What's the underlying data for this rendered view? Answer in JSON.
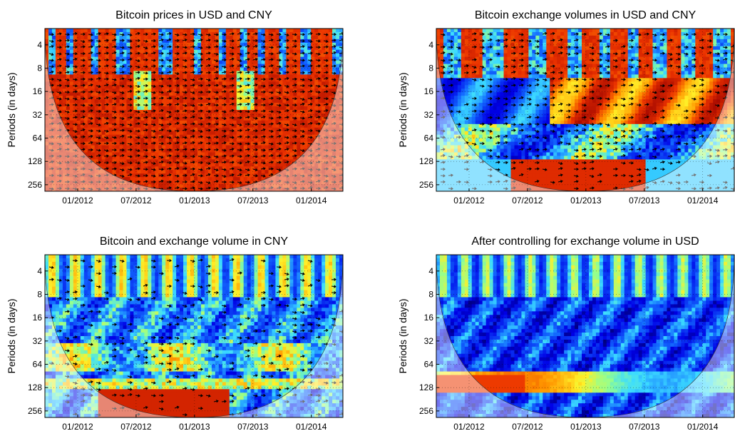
{
  "chart_data": [
    {
      "type": "heatmap",
      "title": "Bitcoin prices in USD and CNY",
      "ylabel": "Periods (in days)",
      "xlabel": "",
      "yscale": "log2",
      "yticks": [
        "4",
        "8",
        "16",
        "32",
        "64",
        "128",
        "256"
      ],
      "xticks": [
        "01/2012",
        "07/2012",
        "01/2013",
        "07/2013",
        "01/2014"
      ],
      "colormap": "jet",
      "cone_of_influence": true,
      "phase_arrows": "dense",
      "coherence": "high"
    },
    {
      "type": "heatmap",
      "title": "Bitcoin exchange volumes in USD and CNY",
      "ylabel": "Periods (in days)",
      "xlabel": "",
      "yscale": "log2",
      "yticks": [
        "4",
        "8",
        "16",
        "32",
        "64",
        "128",
        "256"
      ],
      "xticks": [
        "01/2012",
        "07/2012",
        "01/2013",
        "07/2013",
        "01/2014"
      ],
      "colormap": "jet",
      "cone_of_influence": true,
      "phase_arrows": "moderate",
      "coherence": "mixed"
    },
    {
      "type": "heatmap",
      "title": "Bitcoin and exchange volume in CNY",
      "ylabel": "Periods (in days)",
      "xlabel": "",
      "yscale": "log2",
      "yticks": [
        "4",
        "8",
        "16",
        "32",
        "64",
        "128",
        "256"
      ],
      "xticks": [
        "01/2012",
        "07/2012",
        "01/2013",
        "07/2013",
        "01/2014"
      ],
      "colormap": "jet",
      "cone_of_influence": true,
      "phase_arrows": "sparse",
      "coherence": "low"
    },
    {
      "type": "heatmap",
      "title": "After controlling for exchange volume in USD",
      "ylabel": "Periods (in days)",
      "xlabel": "",
      "yscale": "log2",
      "yticks": [
        "4",
        "8",
        "16",
        "32",
        "64",
        "128",
        "256"
      ],
      "xticks": [
        "01/2012",
        "07/2012",
        "01/2013",
        "07/2013",
        "01/2014"
      ],
      "colormap": "jet",
      "cone_of_influence": true,
      "phase_arrows": "none",
      "coherence": "very low"
    }
  ]
}
